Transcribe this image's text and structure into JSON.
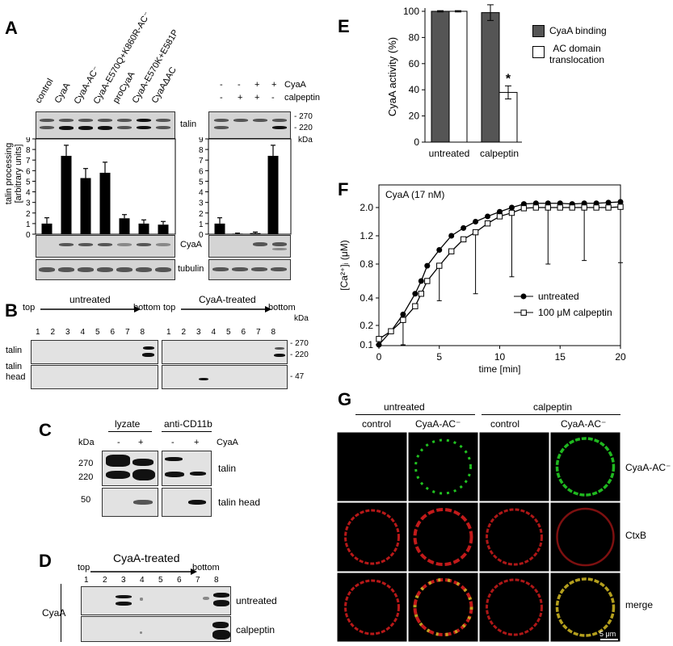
{
  "panels": {
    "A": {
      "letter": "A",
      "left_lanes": [
        "control",
        "CyaA",
        "CyaA-AC⁻",
        "CyaA-E570Q+K860R-AC⁻",
        "proCyaA",
        "CyaA-E570K+E581P",
        "CyaAΔAC"
      ],
      "right_rows": [
        {
          "label": "CyaA",
          "signs": [
            "-",
            "-",
            "+",
            "+"
          ]
        },
        {
          "label": "calpeptin",
          "signs": [
            "-",
            "+",
            "+",
            "-"
          ]
        }
      ],
      "talin_label": "talin",
      "cyaa_label": "CyaA",
      "tubulin_label": "tubulin",
      "mw_270": "- 270",
      "mw_220": "- 220",
      "kda": "kDa",
      "ylabel_line1": "talin processing",
      "ylabel_line2": "[arbitrary units]",
      "yticks": [
        "0",
        "1",
        "2",
        "3",
        "4",
        "5",
        "6",
        "7",
        "8",
        "9"
      ]
    },
    "B": {
      "letter": "B",
      "left_title": "untreated",
      "right_title": "CyaA-treated",
      "top": "top",
      "bottom": "bottom",
      "fractions": [
        "1",
        "2",
        "3",
        "4",
        "5",
        "6",
        "7",
        "8"
      ],
      "row1": "talin",
      "row2_line1": "talin",
      "row2_line2": "head",
      "kda": "kDa",
      "mw_270": "- 270",
      "mw_220": "- 220",
      "mw_47": "- 47"
    },
    "C": {
      "letter": "C",
      "lyzate": "lyzate",
      "anti": "anti-CD11b",
      "kda": "kDa",
      "signs": [
        "-",
        "+",
        "-",
        "+"
      ],
      "cyaa": "CyaA",
      "mw_270": "270",
      "mw_220": "220",
      "mw_50": "50",
      "talin": "talin",
      "talin_head": "talin head"
    },
    "D": {
      "letter": "D",
      "title": "CyaA-treated",
      "top": "top",
      "bottom": "bottom",
      "fractions": [
        "1",
        "2",
        "3",
        "4",
        "5",
        "6",
        "7",
        "8"
      ],
      "side": "CyaA",
      "row1": "untreated",
      "row2": "calpeptin"
    },
    "E": {
      "letter": "E",
      "legend1": "CyaA binding",
      "legend2_line1": "AC domain",
      "legend2_line2": "translocation",
      "star": "*"
    },
    "F": {
      "letter": "F",
      "inset": "CyaA (17 nM)",
      "xlabel": "time [min]",
      "legend1": "untreated",
      "legend2": "100 μM calpeptin"
    },
    "G": {
      "letter": "G",
      "group1": "untreated",
      "group2": "calpeptin",
      "cols": [
        "control",
        "CyaA-AC⁻",
        "control",
        "CyaA-AC⁻"
      ],
      "rows": [
        "CyaA-AC⁻",
        "CtxB",
        "merge"
      ],
      "scalebar": "5 μm"
    }
  },
  "chart_data": [
    {
      "id": "A-left",
      "type": "bar",
      "categories": [
        "control",
        "CyaA",
        "CyaA-AC⁻",
        "CyaA-E570Q+K860R-AC⁻",
        "proCyaA",
        "CyaA-E570K+E581P",
        "CyaAΔAC"
      ],
      "values": [
        1.0,
        7.4,
        5.3,
        5.8,
        1.5,
        1.0,
        0.9
      ],
      "errors": [
        0.55,
        1.0,
        0.9,
        1.0,
        0.35,
        0.35,
        0.3
      ],
      "ylabel": "talin processing [arbitrary units]",
      "ylim": [
        0,
        9
      ]
    },
    {
      "id": "A-right",
      "type": "bar",
      "categories": [
        "- / -",
        "- / +",
        "+ / +",
        "+ / -"
      ],
      "values": [
        1.0,
        0.05,
        0.1,
        7.4
      ],
      "errors": [
        0.55,
        0.05,
        0.1,
        1.0
      ],
      "ylim": [
        0,
        9
      ]
    },
    {
      "id": "E",
      "type": "bar",
      "categories": [
        "untreated",
        "calpeptin"
      ],
      "series": [
        {
          "name": "CyaA binding",
          "values": [
            100,
            99
          ],
          "errors": [
            0.5,
            6
          ],
          "color": "#555555"
        },
        {
          "name": "AC domain translocation",
          "values": [
            100,
            38
          ],
          "errors": [
            0.5,
            5
          ],
          "color": "#ffffff"
        }
      ],
      "ylabel": "CyaA activity (%)",
      "ylim": [
        0,
        100
      ],
      "yticks": [
        0,
        20,
        40,
        60,
        80,
        100
      ],
      "legend": "right"
    },
    {
      "id": "F",
      "type": "line",
      "xlabel": "time [min]",
      "ylabel": "[Ca²⁺]ᵢ (μM)",
      "xticks": [
        0,
        5,
        10,
        15,
        20
      ],
      "yticks": [
        0.1,
        0.2,
        0.4,
        0.8,
        1.2,
        2.0
      ],
      "xlim": [
        0,
        20
      ],
      "series": [
        {
          "name": "untreated",
          "marker": "filled-circle",
          "x": [
            0,
            1,
            2,
            3,
            3.5,
            4,
            5,
            6,
            7,
            8,
            9,
            10,
            11,
            12,
            13,
            14,
            15,
            16,
            17,
            18,
            19,
            20
          ],
          "y": [
            0.1,
            0.17,
            0.28,
            0.45,
            0.6,
            0.78,
            1.0,
            1.2,
            1.42,
            1.6,
            1.75,
            1.88,
            2.0,
            2.1,
            2.12,
            2.12,
            2.12,
            2.1,
            2.12,
            2.12,
            2.14,
            2.16
          ]
        },
        {
          "name": "100 μM calpeptin",
          "marker": "open-square",
          "x": [
            0,
            1,
            2,
            3,
            3.5,
            4,
            5,
            6,
            7,
            8,
            9,
            10,
            11,
            12,
            13,
            14,
            15,
            16,
            17,
            18,
            19,
            20
          ],
          "y": [
            0.13,
            0.17,
            0.24,
            0.34,
            0.45,
            0.6,
            0.78,
            0.98,
            1.15,
            1.3,
            1.55,
            1.75,
            1.85,
            1.98,
            2.0,
            2.0,
            2.0,
            2.0,
            2.0,
            2.0,
            2.0,
            2.02
          ],
          "error_x": [
            2,
            5,
            8,
            11,
            14,
            17,
            20
          ],
          "error_low": [
            0.17,
            0.4,
            0.85,
            1.2,
            1.2,
            1.15,
            1.2
          ]
        }
      ]
    }
  ]
}
